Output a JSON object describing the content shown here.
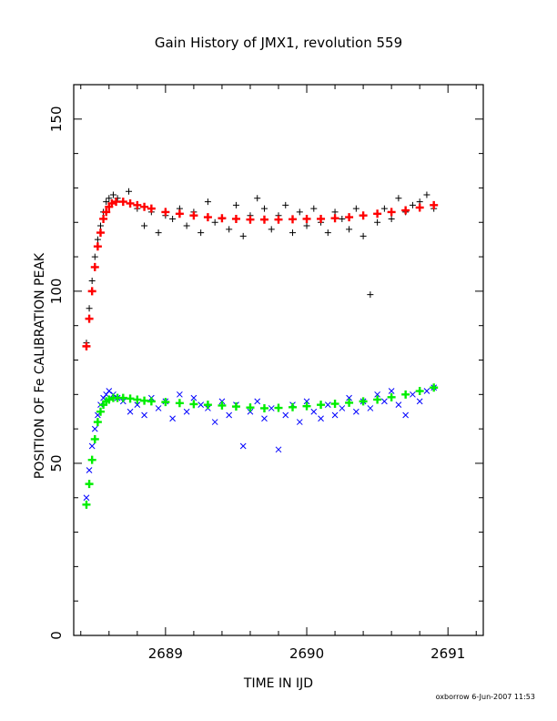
{
  "chart_data": {
    "type": "scatter",
    "title": "Gain History of JMX1, revolution 559",
    "xlabel": "TIME IN IJD",
    "ylabel": "POSITION OF Fe CALIBRATION PEAK",
    "xlim": [
      2688.35,
      2691.25
    ],
    "ylim": [
      0,
      160
    ],
    "xticks_major": [
      2689,
      2690,
      2691
    ],
    "xticks_minor_step": 0.2,
    "yticks_major": [
      0,
      50,
      100,
      150
    ],
    "yticks_minor_step": 10,
    "grid": false,
    "footer": "oxborrow   6-Jun-2007 11:53",
    "series": [
      {
        "marker": "plus",
        "color": "#000000",
        "x": [
          2688.44,
          2688.46,
          2688.48,
          2688.5,
          2688.52,
          2688.54,
          2688.56,
          2688.58,
          2688.6,
          2688.63,
          2688.66,
          2688.7,
          2688.74,
          2688.8,
          2688.85,
          2688.9,
          2688.95,
          2689.0,
          2689.05,
          2689.1,
          2689.15,
          2689.2,
          2689.25,
          2689.3,
          2689.35,
          2689.4,
          2689.45,
          2689.5,
          2689.55,
          2689.6,
          2689.65,
          2689.7,
          2689.75,
          2689.8,
          2689.85,
          2689.9,
          2689.95,
          2690.0,
          2690.05,
          2690.1,
          2690.15,
          2690.2,
          2690.25,
          2690.3,
          2690.35,
          2690.4,
          2690.45,
          2690.5,
          2690.55,
          2690.6,
          2690.65,
          2690.7,
          2690.75,
          2690.8,
          2690.85,
          2690.9
        ],
        "y": [
          85,
          95,
          103,
          110,
          115,
          119,
          123,
          126,
          127,
          128,
          127,
          126,
          129,
          124,
          119,
          123,
          117,
          122,
          121,
          124,
          119,
          123,
          117,
          126,
          120,
          121,
          118,
          125,
          116,
          122,
          127,
          124,
          118,
          122,
          125,
          117,
          123,
          119,
          124,
          120,
          117,
          123,
          121,
          118,
          124,
          116,
          99,
          120,
          124,
          121,
          127,
          123,
          125,
          126,
          128,
          124
        ]
      },
      {
        "marker": "plus-thick",
        "color": "#ff0000",
        "x": [
          2688.44,
          2688.46,
          2688.48,
          2688.5,
          2688.52,
          2688.54,
          2688.56,
          2688.58,
          2688.6,
          2688.62,
          2688.65,
          2688.7,
          2688.75,
          2688.8,
          2688.85,
          2688.9,
          2689.0,
          2689.1,
          2689.2,
          2689.3,
          2689.4,
          2689.5,
          2689.6,
          2689.7,
          2689.8,
          2689.9,
          2690.0,
          2690.1,
          2690.2,
          2690.3,
          2690.4,
          2690.5,
          2690.6,
          2690.7,
          2690.8,
          2690.9
        ],
        "y": [
          84,
          92,
          100,
          107,
          113,
          117,
          121,
          123,
          124.5,
          125.5,
          126,
          126,
          125.5,
          125,
          124.5,
          124,
          123,
          122.5,
          122,
          121.5,
          121.2,
          121,
          120.8,
          120.8,
          120.8,
          120.9,
          121,
          121,
          121.2,
          121.5,
          122,
          122.5,
          123,
          123.5,
          124.3,
          125
        ]
      },
      {
        "marker": "cross",
        "color": "#0000ff",
        "x": [
          2688.44,
          2688.46,
          2688.48,
          2688.5,
          2688.52,
          2688.54,
          2688.56,
          2688.58,
          2688.6,
          2688.63,
          2688.66,
          2688.7,
          2688.75,
          2688.8,
          2688.85,
          2688.9,
          2688.95,
          2689.0,
          2689.05,
          2689.1,
          2689.15,
          2689.2,
          2689.25,
          2689.3,
          2689.35,
          2689.4,
          2689.45,
          2689.5,
          2689.55,
          2689.6,
          2689.65,
          2689.7,
          2689.75,
          2689.8,
          2689.85,
          2689.9,
          2689.95,
          2690.0,
          2690.05,
          2690.1,
          2690.15,
          2690.2,
          2690.25,
          2690.3,
          2690.35,
          2690.4,
          2690.45,
          2690.5,
          2690.55,
          2690.6,
          2690.65,
          2690.7,
          2690.75,
          2690.8,
          2690.85,
          2690.9
        ],
        "y": [
          40,
          48,
          55,
          60,
          64,
          67,
          69,
          70,
          71,
          70,
          69,
          68,
          65,
          67,
          64,
          69,
          66,
          68,
          63,
          70,
          65,
          69,
          67,
          66,
          62,
          68,
          64,
          67,
          55,
          65,
          68,
          63,
          66,
          54,
          64,
          67,
          62,
          68,
          65,
          63,
          67,
          64,
          66,
          69,
          65,
          68,
          66,
          70,
          68,
          71,
          67,
          64,
          70,
          68,
          71,
          72
        ]
      },
      {
        "marker": "plus-thick",
        "color": "#00ee00",
        "x": [
          2688.44,
          2688.46,
          2688.48,
          2688.5,
          2688.52,
          2688.54,
          2688.56,
          2688.58,
          2688.6,
          2688.63,
          2688.66,
          2688.7,
          2688.75,
          2688.8,
          2688.85,
          2688.9,
          2689.0,
          2689.1,
          2689.2,
          2689.3,
          2689.4,
          2689.5,
          2689.6,
          2689.7,
          2689.8,
          2689.9,
          2690.0,
          2690.1,
          2690.2,
          2690.3,
          2690.4,
          2690.5,
          2690.6,
          2690.7,
          2690.8,
          2690.9
        ],
        "y": [
          38,
          44,
          51,
          57,
          62,
          65,
          67,
          68,
          68.5,
          69,
          69,
          69,
          68.8,
          68.5,
          68.2,
          68,
          67.8,
          67.5,
          67.2,
          67,
          66.8,
          66.5,
          66.2,
          66,
          66.1,
          66.3,
          66.6,
          67,
          67.3,
          67.6,
          68,
          68.5,
          69.2,
          70,
          71,
          72
        ]
      }
    ]
  }
}
